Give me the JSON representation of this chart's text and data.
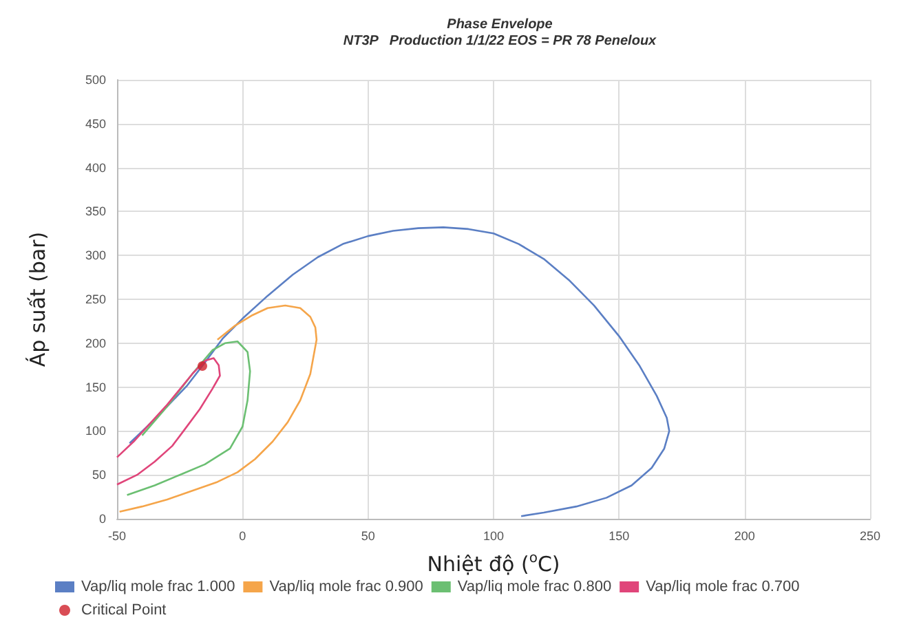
{
  "chart_data": {
    "type": "line",
    "title": "Phase Envelope",
    "subtitle": "NT3P   Production 1/1/22 EOS = PR 78 Peneloux",
    "xlabel": "Nhiệt độ ($^{o}$C)",
    "ylabel": "Áp suất (bar)",
    "xlim": [
      -50,
      250
    ],
    "xticks": [
      -50,
      0,
      50,
      100,
      150,
      200,
      250
    ],
    "ylim": [
      0,
      500
    ],
    "yticks": [
      0,
      50,
      100,
      150,
      200,
      250,
      300,
      350,
      400,
      450,
      500
    ],
    "grid": true,
    "legend": "bottom",
    "line_style": "solid",
    "series": [
      {
        "name": "Vap/liq mole frac 1.000",
        "color": "#5b7fc4",
        "x": [
          -45,
          -38,
          -30,
          -22,
          -15,
          -8,
          0,
          10,
          20,
          30,
          40,
          50,
          60,
          70,
          80,
          90,
          100,
          110,
          120,
          130,
          140,
          150,
          158,
          165,
          169,
          170,
          168,
          163,
          155,
          145,
          133,
          120,
          111
        ],
        "values": [
          86,
          105,
          128,
          152,
          178,
          205,
          228,
          254,
          278,
          298,
          313,
          322,
          328,
          331,
          332,
          330,
          325,
          313,
          296,
          272,
          243,
          208,
          175,
          140,
          115,
          100,
          80,
          58,
          38,
          24,
          14,
          7,
          3
        ]
      },
      {
        "name": "Vap/liq mole frac 0.900",
        "color": "#f5a54a",
        "x": [
          -49,
          -40,
          -30,
          -20,
          -10,
          -2,
          5,
          12,
          18,
          23,
          27,
          29.5,
          29,
          27,
          23,
          17,
          10,
          4,
          -3,
          -10
        ],
        "values": [
          8,
          14,
          22,
          32,
          42,
          53,
          68,
          88,
          110,
          135,
          165,
          204,
          218,
          230,
          240,
          243,
          240,
          232,
          220,
          204
        ]
      },
      {
        "name": "Vap/liq mole frac 0.800",
        "color": "#6bbf72",
        "x": [
          -46,
          -35,
          -25,
          -15,
          -5,
          0,
          2,
          3,
          2,
          -2,
          -7,
          -12,
          -20,
          -30,
          -40
        ],
        "values": [
          27,
          38,
          50,
          62,
          80,
          105,
          135,
          168,
          190,
          202,
          200,
          192,
          165,
          128,
          95
        ]
      },
      {
        "name": "Vap/liq mole frac 0.700",
        "color": "#e0457a",
        "x": [
          -50,
          -42,
          -35,
          -28,
          -23.5,
          -17,
          -12,
          -9,
          -9.5,
          -11.5,
          -15,
          -20,
          -30,
          -38,
          -43,
          -50
        ],
        "values": [
          39,
          50,
          65,
          83,
          100,
          125,
          148,
          163,
          175,
          183,
          180,
          165,
          130,
          105,
          89,
          70
        ]
      },
      {
        "name": "Critical Point",
        "type": "scatter",
        "color": "#d0202a",
        "x": [
          -16
        ],
        "values": [
          174
        ]
      }
    ]
  }
}
